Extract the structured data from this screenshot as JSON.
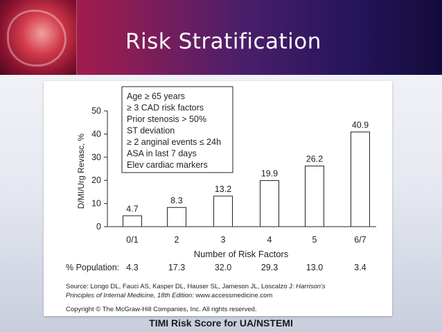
{
  "slide": {
    "title": "Risk Stratification",
    "caption": "TIMI Risk Score for UA/NSTEMI"
  },
  "chart_data": {
    "type": "bar",
    "categories": [
      "0/1",
      "2",
      "3",
      "4",
      "5",
      "6/7"
    ],
    "values": [
      4.7,
      8.3,
      13.2,
      19.9,
      26.2,
      40.9
    ],
    "data_labels": [
      "4.7",
      "8.3",
      "13.2",
      "19.9",
      "26.2",
      "40.9"
    ],
    "ylabel": "D/MI/Urg Revasc, %",
    "xlabel": "Number of Risk Factors",
    "ylim": [
      0,
      50
    ],
    "yticks": [
      "0",
      "10",
      "20",
      "30",
      "40",
      "50"
    ],
    "risk_factors": [
      "Age ≥ 65 years",
      "≥ 3 CAD risk factors",
      "Prior stenosis > 50%",
      "ST deviation",
      "≥ 2 anginal events ≤ 24h",
      "ASA in last 7 days",
      "Elev cardiac markers"
    ],
    "population_label": "% Population:",
    "population": [
      "4.3",
      "17.3",
      "32.0",
      "29.3",
      "13.0",
      "3.4"
    ],
    "source": [
      "Source: Longo DL, Fauci AS, Kasper DL, Hauser SL, Jameson JL, Loscalzo J: ",
      "Harrison's",
      "Principles of Internal Medicine, 18th Edition:",
      " www.accessmedicine.com",
      "Copyright © The McGraw-Hill Companies, Inc. All rights reserved."
    ]
  }
}
